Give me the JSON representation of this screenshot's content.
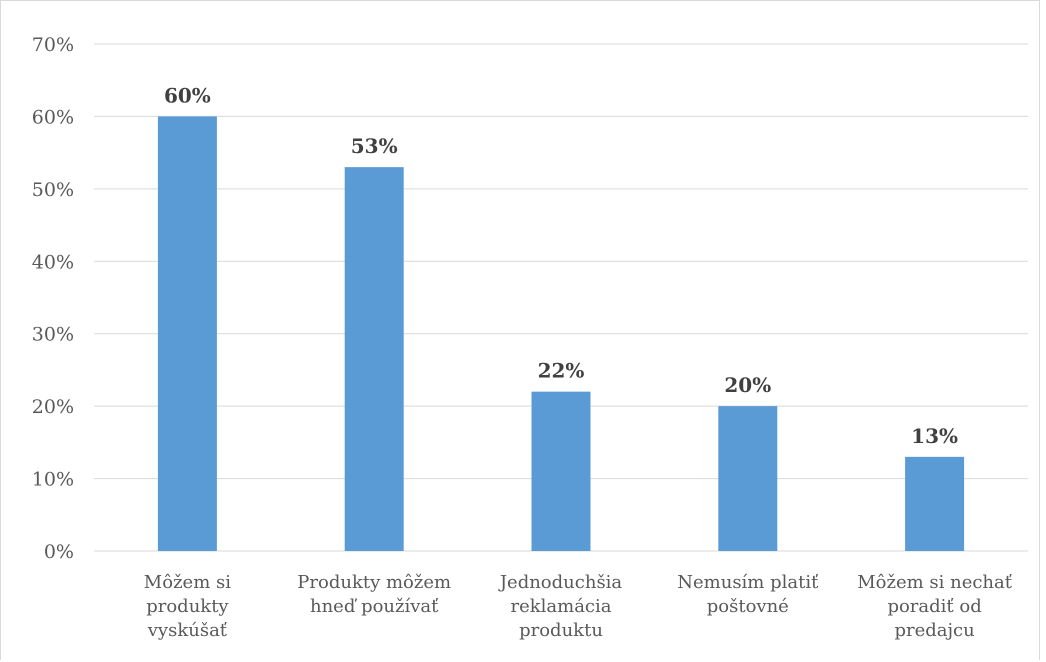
{
  "chart_data": {
    "type": "bar",
    "title": "",
    "xlabel": "",
    "ylabel": "",
    "categories": [
      [
        "Môžem si",
        "produkty",
        "vyskúšať"
      ],
      [
        "Produkty môžem",
        "hneď používať"
      ],
      [
        "Jednoduchšia",
        "reklamácia",
        "produktu"
      ],
      [
        "Nemusím platiť",
        "poštovné"
      ],
      [
        "Môžem si nechať",
        "poradiť od",
        "predajcu"
      ]
    ],
    "values": [
      0.6,
      0.53,
      0.22,
      0.2,
      0.13
    ],
    "data_labels": [
      "60%",
      "53%",
      "22%",
      "20%",
      "13%"
    ],
    "ylim": [
      0,
      0.7
    ],
    "yticks": [
      "0%",
      "10%",
      "20%",
      "30%",
      "40%",
      "50%",
      "60%",
      "70%"
    ],
    "grid": true,
    "legend": "none",
    "bar_color": "#5b9bd5"
  }
}
